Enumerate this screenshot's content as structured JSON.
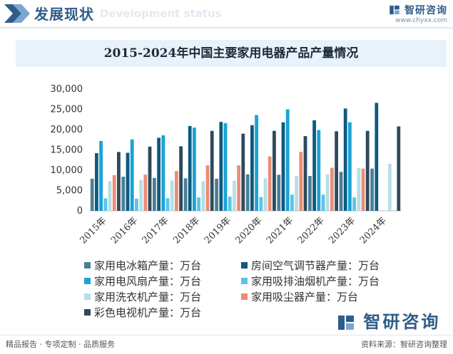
{
  "header": {
    "title": "发展现状",
    "ghost_text": "Development status",
    "brand_name": "智研咨询",
    "brand_url": "www.chyxx.com"
  },
  "chart_data": {
    "type": "bar",
    "title": "2015-2024年中国主要家用电器产品产量情况",
    "categories": [
      "2015年",
      "2016年",
      "2017年",
      "2018年",
      "2019年",
      "2020年",
      "2021年",
      "2022年",
      "2023年",
      "2024年"
    ],
    "ylim": [
      0,
      30000
    ],
    "yticks": [
      "0",
      "5,000",
      "10,000",
      "15,000",
      "20,000",
      "25,000",
      "30,000"
    ],
    "grid": false,
    "legend_position": "bottom",
    "series": [
      {
        "name": "家用电冰箱产量：万台",
        "color": "#4a7f96",
        "values": [
          7900,
          8400,
          8100,
          8000,
          7900,
          9000,
          8900,
          8600,
          9600,
          10400
        ]
      },
      {
        "name": "房间空气调节器产量：万台",
        "color": "#0e5a7f",
        "values": [
          14200,
          14300,
          18000,
          20900,
          21900,
          21100,
          21800,
          22300,
          25200,
          26600
        ]
      },
      {
        "name": "家用电风扇产量：万台",
        "color": "#1aa3d6",
        "values": [
          17200,
          17600,
          18600,
          20500,
          21600,
          23600,
          25000,
          19900,
          21800,
          null
        ]
      },
      {
        "name": "家用吸排油烟机产量：万台",
        "color": "#5bc3ea",
        "values": [
          3100,
          3000,
          3100,
          3300,
          3500,
          3400,
          4000,
          4000,
          3300,
          null
        ]
      },
      {
        "name": "家用洗衣机产量：万台",
        "color": "#b6dfe3",
        "values": [
          7300,
          7600,
          7500,
          7300,
          7400,
          8000,
          8600,
          9000,
          10500,
          11600
        ]
      },
      {
        "name": "家用吸尘器产量：万台",
        "color": "#ea8d76",
        "values": [
          8800,
          8900,
          9800,
          11200,
          11200,
          13400,
          14500,
          10600,
          10400,
          null
        ]
      },
      {
        "name": "彩色电视机产量：万台",
        "color": "#2e4a5c",
        "values": [
          14500,
          15800,
          15900,
          19700,
          19000,
          19700,
          18400,
          19600,
          19700,
          20800
        ]
      }
    ]
  },
  "footer": {
    "left": "精品报告 · 专项定制 · 品质服务",
    "source": "资料来源：智研咨询整理",
    "logo": "智研咨询"
  }
}
